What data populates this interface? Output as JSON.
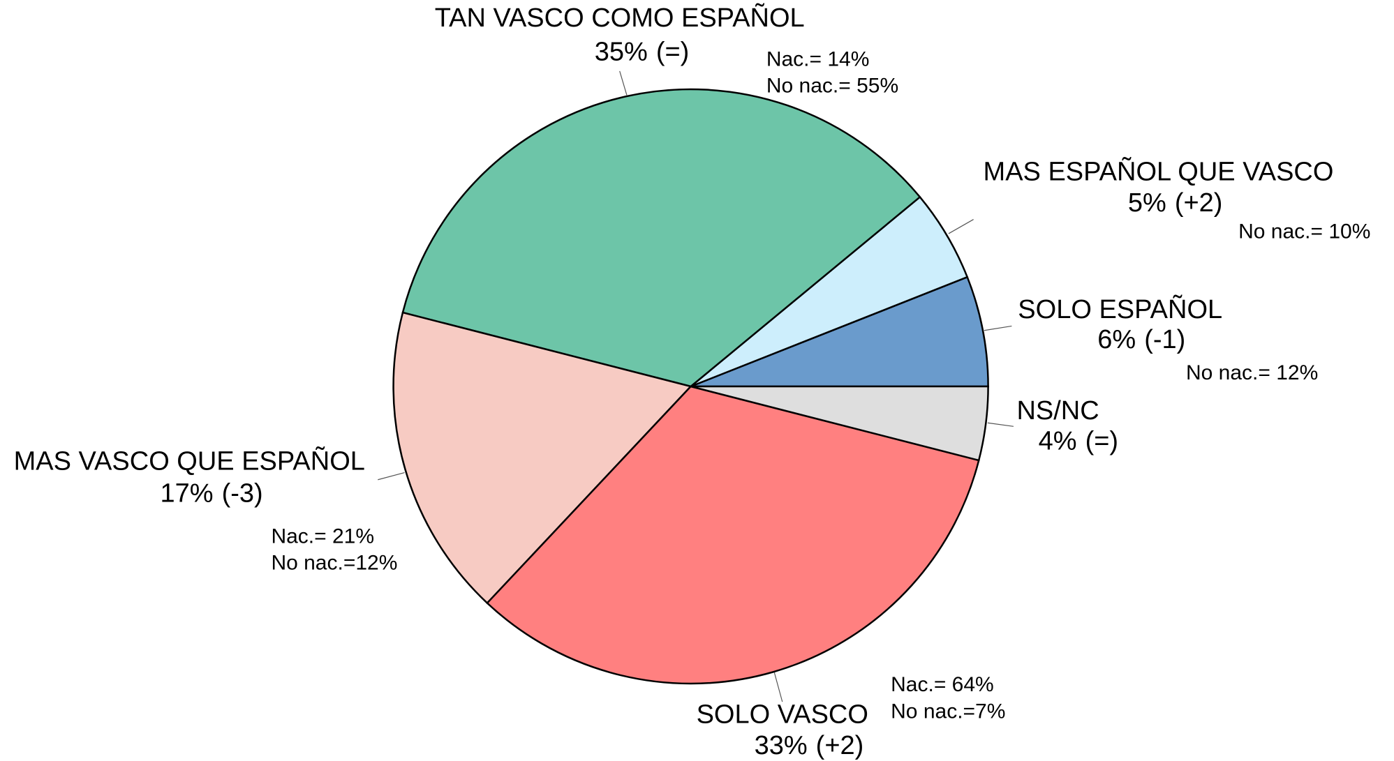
{
  "chart_data": {
    "type": "pie",
    "categories": [
      "SOLO ESPAÑOL",
      "MAS ESPAÑOL QUE VASCO",
      "TAN VASCO COMO ESPAÑOL",
      "MAS VASCO QUE ESPAÑOL",
      "SOLO VASCO",
      "NS/NC"
    ],
    "values": [
      6,
      5,
      35,
      17,
      33,
      4
    ],
    "value_labels": [
      "6%",
      "5%",
      "35%",
      "17%",
      "33%",
      "4%"
    ],
    "changes": [
      "(-1)",
      "(+2)",
      "(=)",
      "(-3)",
      "(+2)",
      "(=)"
    ],
    "notes": [
      [
        "No nac.= 12%"
      ],
      [
        "No nac.= 10%"
      ],
      [
        "Nac.= 14%",
        "No nac.= 55%"
      ],
      [
        "Nac.= 21%",
        "No nac.=12%"
      ],
      [
        "Nac.= 64%",
        "No nac.=7%"
      ],
      []
    ],
    "colors": [
      "#6a9bcc",
      "#cdeefc",
      "#6dc5a8",
      "#f7cbc3",
      "#ff8080",
      "#dedede"
    ]
  }
}
